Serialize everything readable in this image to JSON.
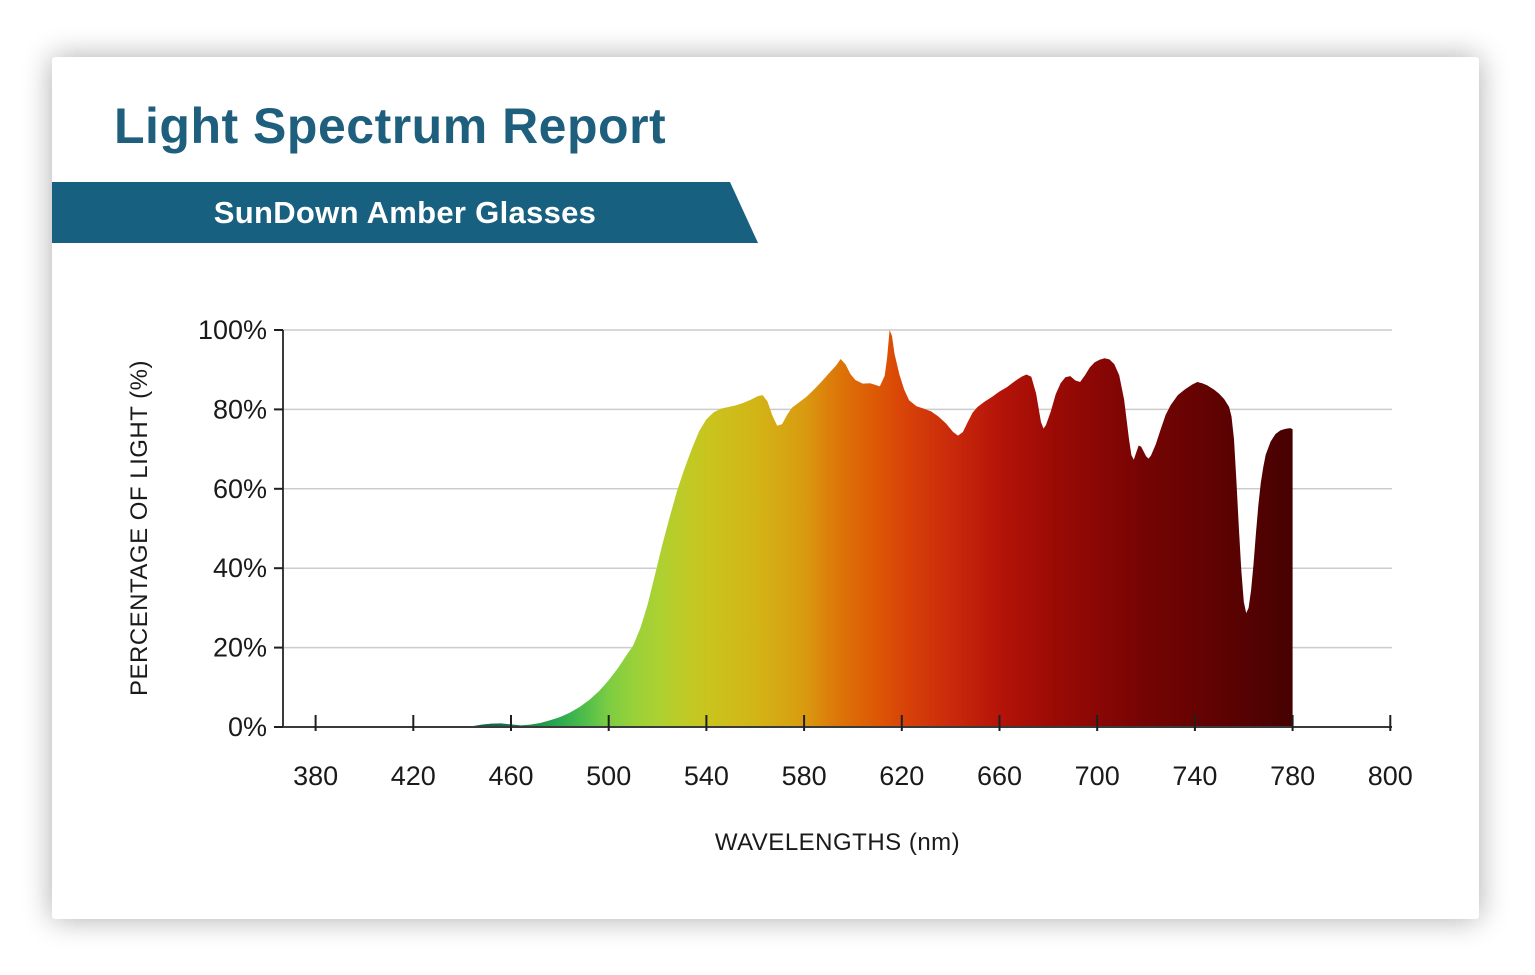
{
  "header": {
    "title": "Light Spectrum Report",
    "title_color": "#1d5f7d",
    "subtitle": "SunDown Amber Glasses",
    "banner_color": "#17607f",
    "subtitle_color": "#ffffff"
  },
  "chart_data": {
    "type": "area",
    "title": "",
    "xlabel": "WAVELENGTHS (nm)",
    "ylabel": "PERCENTAGE OF LIGHT (%)",
    "series_name": "SunDown Amber Glasses",
    "x_tick_labels": [
      "380",
      "420",
      "460",
      "500",
      "540",
      "580",
      "620",
      "660",
      "700",
      "740",
      "780",
      "800"
    ],
    "y_tick_labels": [
      "0%",
      "20%",
      "40%",
      "60%",
      "80%",
      "100%"
    ],
    "y_tick_values": [
      0,
      20,
      40,
      60,
      80,
      100
    ],
    "ylim": [
      0,
      100
    ],
    "xlim_nm": [
      380,
      800
    ],
    "grid": "horizontal",
    "legend": "none",
    "grid_color": "#cccccc",
    "axis_color": "#3a3a3a",
    "tick_color": "#1f1f1f",
    "label_color": "#1a1a1a",
    "points": [
      [
        380,
        0
      ],
      [
        420,
        0
      ],
      [
        440,
        0
      ],
      [
        444,
        0.2
      ],
      [
        448,
        0.6
      ],
      [
        452,
        0.85
      ],
      [
        456,
        0.9
      ],
      [
        460,
        0.65
      ],
      [
        464,
        0.4
      ],
      [
        468,
        0.6
      ],
      [
        472,
        1
      ],
      [
        476,
        1.7
      ],
      [
        480,
        2.5
      ],
      [
        484,
        3.6
      ],
      [
        488,
        5
      ],
      [
        492,
        6.8
      ],
      [
        496,
        9
      ],
      [
        500,
        11.8
      ],
      [
        504,
        15
      ],
      [
        507,
        17.8
      ],
      [
        510,
        20.5
      ],
      [
        513,
        25
      ],
      [
        516,
        31
      ],
      [
        519,
        38.5
      ],
      [
        522,
        46
      ],
      [
        525,
        53
      ],
      [
        528,
        59.5
      ],
      [
        531,
        65
      ],
      [
        534,
        70
      ],
      [
        537,
        74.5
      ],
      [
        540,
        77.5
      ],
      [
        543,
        79.3
      ],
      [
        546,
        80.2
      ],
      [
        549,
        80.6
      ],
      [
        552,
        81
      ],
      [
        555,
        81.6
      ],
      [
        558,
        82.4
      ],
      [
        561,
        83.3
      ],
      [
        563,
        83.6
      ],
      [
        565,
        82
      ],
      [
        567,
        78.5
      ],
      [
        569,
        75.9
      ],
      [
        571,
        76.3
      ],
      [
        573,
        78.6
      ],
      [
        575,
        80.4
      ],
      [
        578,
        81.8
      ],
      [
        581,
        83.2
      ],
      [
        584,
        85
      ],
      [
        587,
        86.9
      ],
      [
        590,
        89
      ],
      [
        593,
        91
      ],
      [
        595,
        92.7
      ],
      [
        597,
        91.3
      ],
      [
        599,
        88.9
      ],
      [
        601,
        87.4
      ],
      [
        604,
        86.5
      ],
      [
        607,
        86.6
      ],
      [
        609,
        86.2
      ],
      [
        611,
        85.8
      ],
      [
        613,
        88.5
      ],
      [
        614,
        93
      ],
      [
        615,
        100
      ],
      [
        616,
        98.5
      ],
      [
        617,
        94
      ],
      [
        619,
        88.8
      ],
      [
        621,
        85
      ],
      [
        623,
        82.3
      ],
      [
        626,
        80.8
      ],
      [
        629,
        80.2
      ],
      [
        632,
        79.5
      ],
      [
        635,
        78.2
      ],
      [
        638,
        76.5
      ],
      [
        641,
        74.3
      ],
      [
        643,
        73.4
      ],
      [
        645,
        74.3
      ],
      [
        647,
        76.8
      ],
      [
        649,
        79.2
      ],
      [
        651,
        80.6
      ],
      [
        654,
        82
      ],
      [
        657,
        83.2
      ],
      [
        660,
        84.5
      ],
      [
        663,
        85.6
      ],
      [
        666,
        87
      ],
      [
        669,
        88.2
      ],
      [
        671,
        88.8
      ],
      [
        673,
        88.2
      ],
      [
        675,
        84
      ],
      [
        677,
        76.8
      ],
      [
        678,
        75.2
      ],
      [
        679,
        76
      ],
      [
        681,
        79.5
      ],
      [
        683,
        83.8
      ],
      [
        685,
        86.6
      ],
      [
        687,
        88.1
      ],
      [
        689,
        88.4
      ],
      [
        691,
        87.3
      ],
      [
        693,
        86.9
      ],
      [
        695,
        88.6
      ],
      [
        697,
        90.6
      ],
      [
        699,
        91.9
      ],
      [
        701,
        92.5
      ],
      [
        703,
        92.9
      ],
      [
        705,
        92.6
      ],
      [
        707,
        91.4
      ],
      [
        709,
        88.6
      ],
      [
        711,
        82.5
      ],
      [
        713,
        72.5
      ],
      [
        714,
        68.5
      ],
      [
        715,
        67.3
      ],
      [
        716,
        69.2
      ],
      [
        717,
        70.9
      ],
      [
        718,
        70.6
      ],
      [
        720,
        68.2
      ],
      [
        721,
        67.6
      ],
      [
        722,
        68.3
      ],
      [
        724,
        71.2
      ],
      [
        726,
        75
      ],
      [
        728,
        78.6
      ],
      [
        730,
        81
      ],
      [
        733,
        83.6
      ],
      [
        736,
        85.1
      ],
      [
        739,
        86.3
      ],
      [
        741,
        86.9
      ],
      [
        743,
        86.6
      ],
      [
        745,
        86.1
      ],
      [
        748,
        84.9
      ],
      [
        750,
        83.9
      ],
      [
        752,
        82.6
      ],
      [
        754,
        80.6
      ],
      [
        755,
        78.2
      ],
      [
        756,
        72.5
      ],
      [
        757,
        62
      ],
      [
        758,
        50
      ],
      [
        759,
        39.5
      ],
      [
        760,
        31.5
      ],
      [
        761,
        28.7
      ],
      [
        762,
        30
      ],
      [
        763,
        34.5
      ],
      [
        764,
        41
      ],
      [
        765,
        49
      ],
      [
        766,
        56
      ],
      [
        767,
        61.5
      ],
      [
        768,
        65.5
      ],
      [
        769,
        68.6
      ],
      [
        771,
        71.9
      ],
      [
        773,
        73.8
      ],
      [
        775,
        74.7
      ],
      [
        777,
        75.1
      ],
      [
        779,
        75.3
      ],
      [
        780,
        75
      ]
    ],
    "gradient_stops": [
      {
        "at": 440,
        "c": "#0b5c44"
      },
      {
        "at": 458,
        "c": "#12704a"
      },
      {
        "at": 470,
        "c": "#1f9149"
      },
      {
        "at": 480,
        "c": "#2caa50"
      },
      {
        "at": 490,
        "c": "#4fbd4b"
      },
      {
        "at": 500,
        "c": "#7ccd42"
      },
      {
        "at": 510,
        "c": "#98d139"
      },
      {
        "at": 520,
        "c": "#abd132"
      },
      {
        "at": 530,
        "c": "#bdcb28"
      },
      {
        "at": 540,
        "c": "#c9c41e"
      },
      {
        "at": 560,
        "c": "#d2b517"
      },
      {
        "at": 580,
        "c": "#d99b10"
      },
      {
        "at": 590,
        "c": "#dc7f0a"
      },
      {
        "at": 600,
        "c": "#dd6a06"
      },
      {
        "at": 610,
        "c": "#dd5705"
      },
      {
        "at": 620,
        "c": "#d94508"
      },
      {
        "at": 640,
        "c": "#ca2a0b"
      },
      {
        "at": 660,
        "c": "#b51408"
      },
      {
        "at": 680,
        "c": "#9d0b05"
      },
      {
        "at": 700,
        "c": "#8a0705"
      },
      {
        "at": 720,
        "c": "#740404"
      },
      {
        "at": 740,
        "c": "#660302"
      },
      {
        "at": 760,
        "c": "#560202"
      },
      {
        "at": 780,
        "c": "#470101"
      }
    ]
  }
}
